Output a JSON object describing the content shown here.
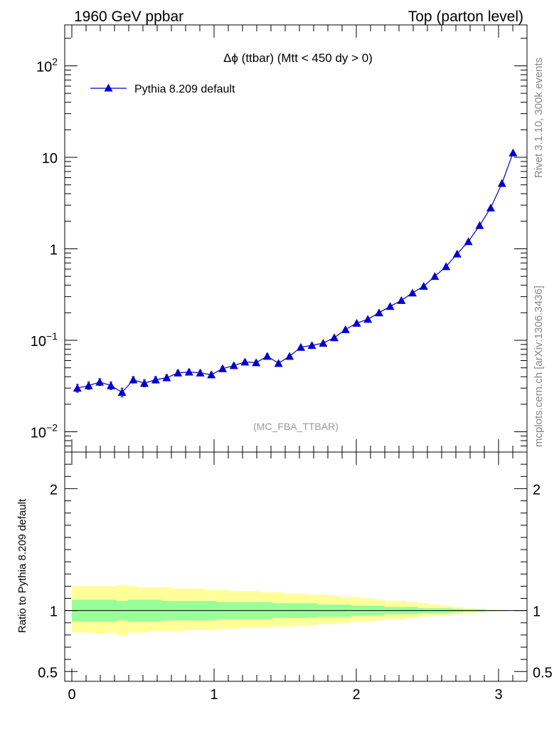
{
  "header": {
    "left": "1960 GeV ppbar",
    "right": "Top (parton level)"
  },
  "side_labels": {
    "rivet": "Rivet 3.1.10,  300k events",
    "mcplots": "mcplots.cern.ch [arXiv:1306.3436]"
  },
  "chart_data": [
    {
      "type": "line",
      "title": "Δϕ (ttbar) (Mtt < 450 dy > 0)",
      "watermark": "(MC_FBA_TTBAR)",
      "yscale": "log",
      "xlim": [
        -0.05,
        3.2
      ],
      "ylim": [
        0.006,
        280
      ],
      "grid": false,
      "legend_placement": "top-left",
      "y_ticks": [
        {
          "value": 0.01,
          "base": "10",
          "exp": "−2"
        },
        {
          "value": 0.1,
          "base": "10",
          "exp": "−1"
        },
        {
          "value": 1,
          "base": "1",
          "exp": ""
        },
        {
          "value": 10,
          "base": "10",
          "exp": ""
        },
        {
          "value": 100,
          "base": "10",
          "exp": "2"
        }
      ],
      "colors": {
        "series": "#0000cc"
      },
      "series": [
        {
          "name": "Pythia 8.209 default",
          "marker": "triangle-up",
          "x": [
            0.039,
            0.118,
            0.196,
            0.275,
            0.353,
            0.432,
            0.51,
            0.589,
            0.667,
            0.746,
            0.824,
            0.903,
            0.981,
            1.06,
            1.139,
            1.217,
            1.296,
            1.374,
            1.453,
            1.531,
            1.61,
            1.688,
            1.767,
            1.845,
            1.924,
            2.003,
            2.081,
            2.16,
            2.238,
            2.317,
            2.395,
            2.474,
            2.552,
            2.631,
            2.709,
            2.788,
            2.867,
            2.945,
            3.024,
            3.102
          ],
          "y": [
            0.03,
            0.032,
            0.035,
            0.032,
            0.027,
            0.037,
            0.034,
            0.037,
            0.039,
            0.044,
            0.045,
            0.044,
            0.042,
            0.049,
            0.053,
            0.058,
            0.057,
            0.067,
            0.056,
            0.067,
            0.084,
            0.088,
            0.093,
            0.107,
            0.131,
            0.154,
            0.17,
            0.2,
            0.235,
            0.273,
            0.33,
            0.39,
            0.5,
            0.64,
            0.88,
            1.2,
            1.8,
            2.8,
            5.2,
            11.2
          ],
          "yerr": [
            0.003,
            0.003,
            0.003,
            0.003,
            0.003,
            0.003,
            0.003,
            0.003,
            0.003,
            0.003,
            0.003,
            0.003,
            0.003,
            0.003,
            0.003,
            0.003,
            0.003,
            0.004,
            0.003,
            0.003,
            0.004,
            0.004,
            0.004,
            0.004,
            0.005,
            0.005,
            0.006,
            0.006,
            0.007,
            0.007,
            0.008,
            0.009,
            0.01,
            0.012,
            0.015,
            0.02,
            0.025,
            0.035,
            0.05,
            0.08
          ]
        }
      ]
    },
    {
      "type": "area",
      "ylabel": "Ratio to Pythia 8.209 default",
      "xlim": [
        -0.05,
        3.2
      ],
      "ylim": [
        0.42,
        2.3
      ],
      "grid": false,
      "y_ticks": [
        0.5,
        1,
        2
      ],
      "y_tick_labels": [
        "0.5",
        "1",
        "2"
      ],
      "x_ticks": [
        0,
        1,
        2,
        3
      ],
      "x_tick_labels": [
        "0",
        "1",
        "2",
        "3"
      ],
      "reference_line": 1,
      "colors": {
        "inner_band": "#99ff99",
        "outer_band": "#ffff99",
        "line": "#000000"
      },
      "x_edges": [
        0.0,
        0.0785,
        0.157,
        0.2355,
        0.314,
        0.3925,
        0.471,
        0.5495,
        0.628,
        0.7065,
        0.785,
        0.8635,
        0.942,
        1.0205,
        1.099,
        1.1775,
        1.256,
        1.3345,
        1.413,
        1.4915,
        1.57,
        1.6485,
        1.727,
        1.8055,
        1.884,
        1.9625,
        2.041,
        2.1195,
        2.198,
        2.2765,
        2.355,
        2.4335,
        2.512,
        2.5905,
        2.669,
        2.7475,
        2.826,
        2.9045,
        2.983,
        3.0615,
        3.14
      ],
      "inner_band": {
        "low": [
          0.91,
          0.91,
          0.91,
          0.91,
          0.92,
          0.91,
          0.91,
          0.91,
          0.92,
          0.92,
          0.92,
          0.92,
          0.92,
          0.93,
          0.93,
          0.93,
          0.93,
          0.93,
          0.94,
          0.94,
          0.94,
          0.94,
          0.95,
          0.95,
          0.95,
          0.96,
          0.96,
          0.96,
          0.97,
          0.97,
          0.97,
          0.98,
          0.98,
          0.98,
          0.985,
          0.99,
          0.99,
          0.995,
          0.995,
          0.998
        ],
        "high": [
          1.09,
          1.09,
          1.09,
          1.09,
          1.08,
          1.09,
          1.09,
          1.09,
          1.08,
          1.08,
          1.08,
          1.08,
          1.08,
          1.07,
          1.07,
          1.07,
          1.07,
          1.07,
          1.06,
          1.06,
          1.06,
          1.06,
          1.05,
          1.05,
          1.05,
          1.04,
          1.04,
          1.04,
          1.03,
          1.03,
          1.03,
          1.02,
          1.02,
          1.02,
          1.015,
          1.01,
          1.01,
          1.005,
          1.005,
          1.002
        ]
      },
      "outer_band": {
        "low": [
          0.82,
          0.82,
          0.81,
          0.82,
          0.8,
          0.82,
          0.82,
          0.83,
          0.83,
          0.83,
          0.84,
          0.84,
          0.84,
          0.85,
          0.85,
          0.86,
          0.86,
          0.86,
          0.87,
          0.87,
          0.88,
          0.88,
          0.89,
          0.89,
          0.9,
          0.91,
          0.91,
          0.92,
          0.93,
          0.93,
          0.94,
          0.95,
          0.96,
          0.96,
          0.97,
          0.98,
          0.985,
          0.99,
          0.995,
          0.998
        ],
        "high": [
          1.2,
          1.2,
          1.2,
          1.2,
          1.21,
          1.2,
          1.19,
          1.19,
          1.19,
          1.18,
          1.18,
          1.18,
          1.17,
          1.17,
          1.16,
          1.16,
          1.16,
          1.15,
          1.15,
          1.14,
          1.14,
          1.13,
          1.13,
          1.12,
          1.11,
          1.11,
          1.1,
          1.09,
          1.08,
          1.08,
          1.07,
          1.06,
          1.05,
          1.04,
          1.03,
          1.02,
          1.015,
          1.01,
          1.005,
          1.002
        ]
      }
    }
  ]
}
